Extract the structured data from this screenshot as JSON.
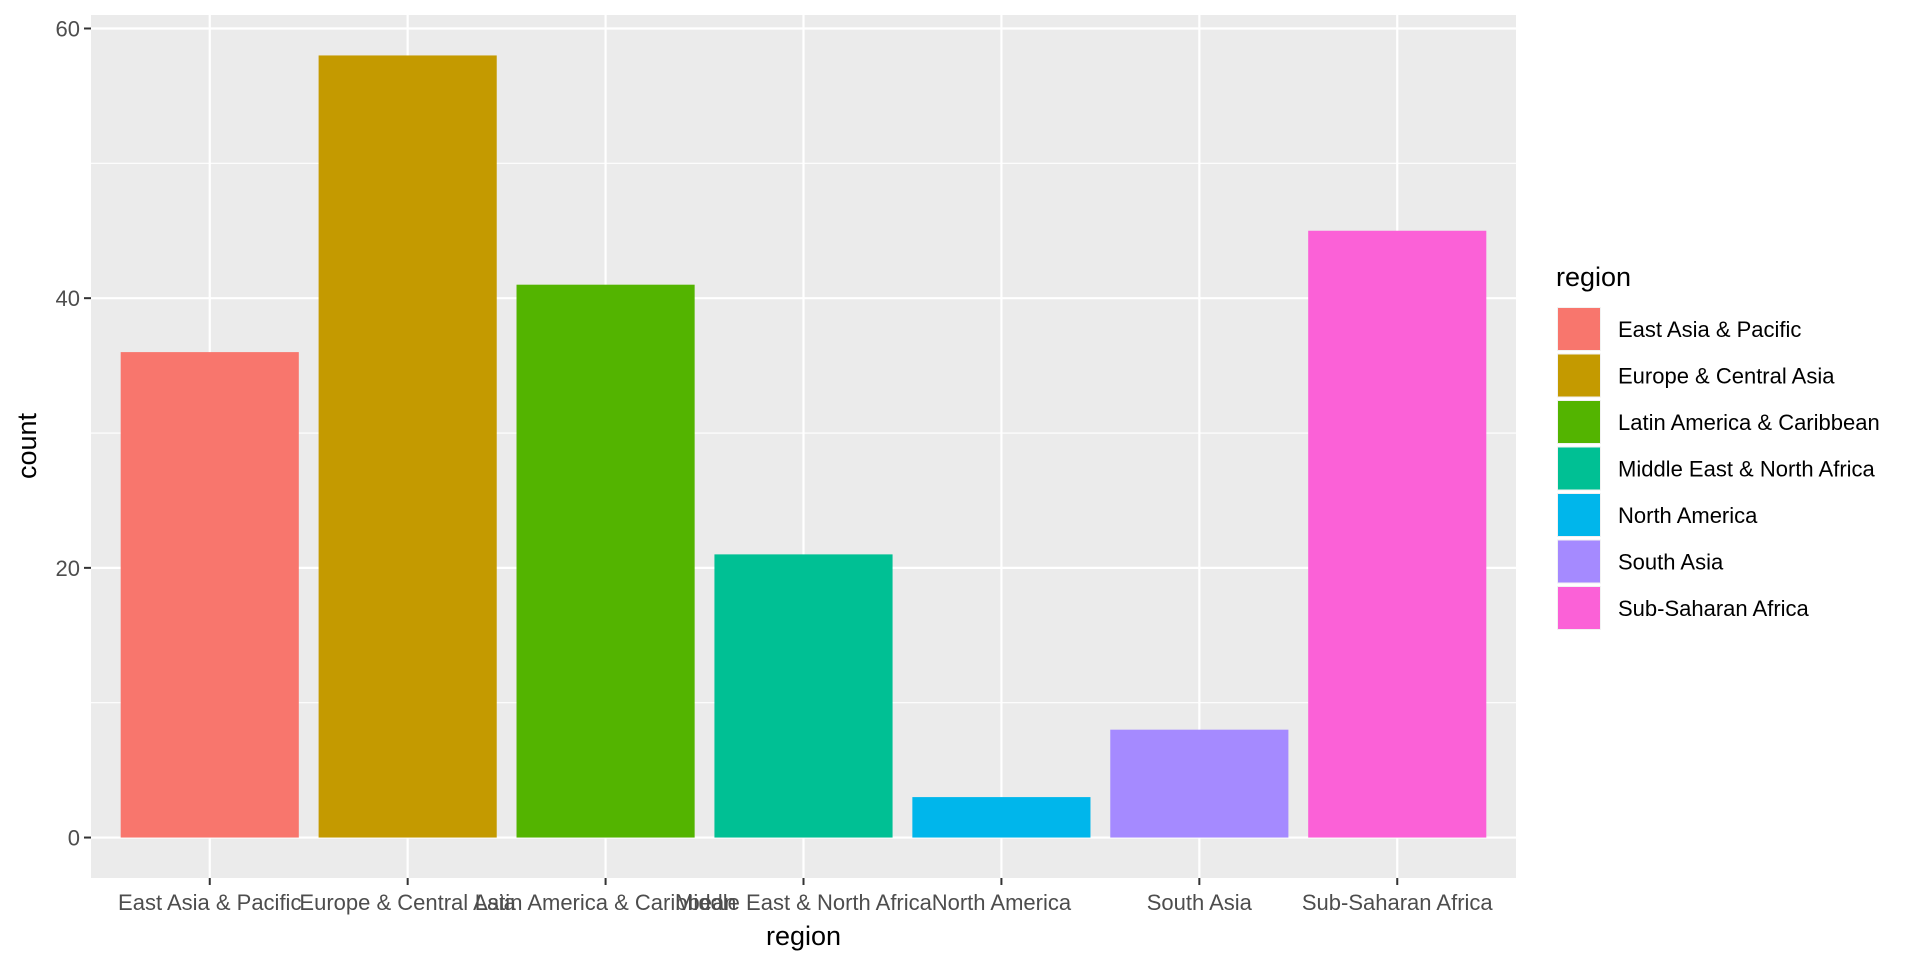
{
  "chart_data": {
    "type": "bar",
    "xlabel": "region",
    "ylabel": "count",
    "ylim": [
      -3,
      61
    ],
    "y_ticks": [
      0,
      20,
      40,
      60
    ],
    "y_minor_ticks": [
      10,
      30,
      50
    ],
    "grid": true,
    "panel_background": "#ebebeb",
    "grid_color": "#ffffff",
    "legend_position": "right",
    "legend": {
      "title": "region"
    },
    "categories": [
      "East Asia & Pacific",
      "Europe & Central Asia",
      "Latin America & Caribbean",
      "Middle East & North Africa",
      "North America",
      "South Asia",
      "Sub-Saharan Africa"
    ],
    "values": [
      36,
      58,
      41,
      21,
      3,
      8,
      45
    ],
    "colors": [
      "#F8766D",
      "#C49A00",
      "#53B400",
      "#00C094",
      "#00B6EB",
      "#A58AFF",
      "#FB61D7"
    ]
  }
}
